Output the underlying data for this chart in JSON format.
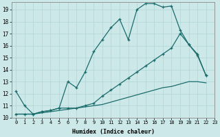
{
  "xlabel": "Humidex (Indice chaleur)",
  "bg_color": "#cce8e8",
  "line_color": "#1a6b6b",
  "grid_color": "#b0d4d4",
  "xlim": [
    -0.5,
    23
  ],
  "ylim": [
    10,
    19.6
  ],
  "yticks": [
    10,
    11,
    12,
    13,
    14,
    15,
    16,
    17,
    18,
    19
  ],
  "xticks": [
    0,
    1,
    2,
    3,
    4,
    5,
    6,
    7,
    8,
    9,
    10,
    11,
    12,
    13,
    14,
    15,
    16,
    17,
    18,
    19,
    20,
    21,
    22,
    23
  ],
  "line1_x": [
    0,
    1,
    2,
    3,
    4,
    5,
    6,
    7,
    8,
    9,
    10,
    11,
    12,
    13,
    14,
    15,
    16,
    17,
    18,
    19,
    20,
    21,
    22
  ],
  "line1_y": [
    12.2,
    11.0,
    10.3,
    10.5,
    10.6,
    10.8,
    13.0,
    12.5,
    13.8,
    15.5,
    16.5,
    17.5,
    18.2,
    16.5,
    19.0,
    19.5,
    19.5,
    19.2,
    19.3,
    17.3,
    16.1,
    15.2,
    13.5
  ],
  "line2_x": [
    0,
    1,
    2,
    3,
    4,
    5,
    6,
    7,
    8,
    9,
    10,
    11,
    12,
    13,
    14,
    15,
    16,
    17,
    18,
    19,
    20,
    21,
    22
  ],
  "line2_y": [
    10.3,
    10.3,
    10.3,
    10.5,
    10.6,
    10.8,
    10.8,
    10.8,
    11.0,
    11.2,
    11.8,
    12.3,
    12.8,
    13.3,
    13.8,
    14.3,
    14.8,
    15.3,
    15.8,
    17.0,
    16.1,
    15.3,
    13.5
  ],
  "line3_x": [
    0,
    1,
    2,
    3,
    4,
    5,
    6,
    7,
    8,
    9,
    10,
    11,
    12,
    13,
    14,
    15,
    16,
    17,
    18,
    19,
    20,
    21,
    22
  ],
  "line3_y": [
    10.3,
    10.3,
    10.3,
    10.4,
    10.5,
    10.6,
    10.7,
    10.8,
    10.9,
    11.0,
    11.1,
    11.3,
    11.5,
    11.7,
    11.9,
    12.1,
    12.3,
    12.5,
    12.6,
    12.8,
    13.0,
    13.0,
    12.9
  ]
}
